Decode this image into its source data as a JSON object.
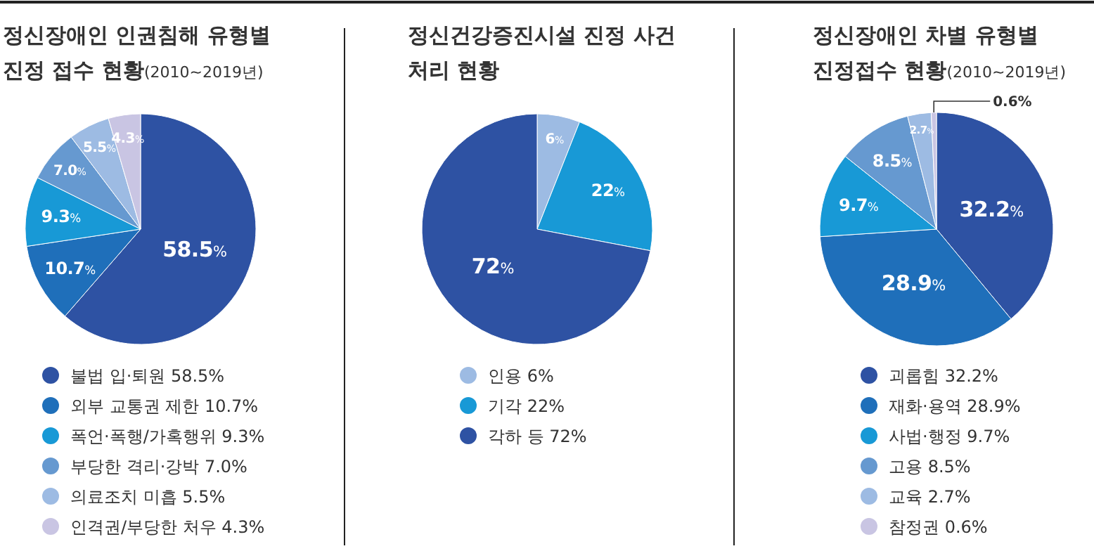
{
  "chart_data": [
    {
      "type": "pie",
      "title": "정신장애인 인권침해 유형별\n진정 접수 현황(2010~2019년)",
      "categories": [
        "불법 입·퇴원 58.5%",
        "외부 교통권 제한 10.7%",
        "폭언·폭행/가혹행위 9.3%",
        "부당한 격리·강박 7.0%",
        "의료조치 미흡 5.5%",
        "인격권/부당한 처우 4.3%"
      ],
      "values": [
        58.5,
        10.7,
        9.3,
        7.0,
        5.5,
        4.3
      ],
      "value_labels": [
        "58.5%",
        "10.7%",
        "9.3%",
        "7.0%",
        "5.5%",
        "4.3%"
      ],
      "legend": "bottom",
      "colors": [
        "#2e52a3",
        "#1f6fba",
        "#1899d6",
        "#6699d0",
        "#9dbbe3",
        "#c9c5e3"
      ]
    },
    {
      "type": "pie",
      "title": "정신건강증진시설 진정 사건\n처리 현황",
      "categories": [
        "인용 6%",
        "기각 22%",
        "각하 등 72%"
      ],
      "values": [
        6,
        22,
        72
      ],
      "value_labels": [
        "6%",
        "22%",
        "72%"
      ],
      "legend": "bottom",
      "colors": [
        "#9dbbe3",
        "#1899d6",
        "#2e52a3"
      ]
    },
    {
      "type": "pie",
      "title": "정신장애인 차별 유형별\n진정접수 현황(2010~2019년)",
      "categories": [
        "괴롭힘 32.2%",
        "재화·용역 28.9%",
        "사법·행정 9.7%",
        "고용 8.5%",
        "교육 2.7%",
        "참정권 0.6%"
      ],
      "values": [
        32.2,
        28.9,
        9.7,
        8.5,
        2.7,
        0.6
      ],
      "value_labels": [
        "32.2%",
        "28.9%",
        "9.7%",
        "8.5%",
        "2.7%",
        "0.6%"
      ],
      "legend": "bottom",
      "colors": [
        "#2e52a3",
        "#1f6fba",
        "#1899d6",
        "#6699d0",
        "#9dbbe3",
        "#c9c5e3"
      ]
    }
  ]
}
